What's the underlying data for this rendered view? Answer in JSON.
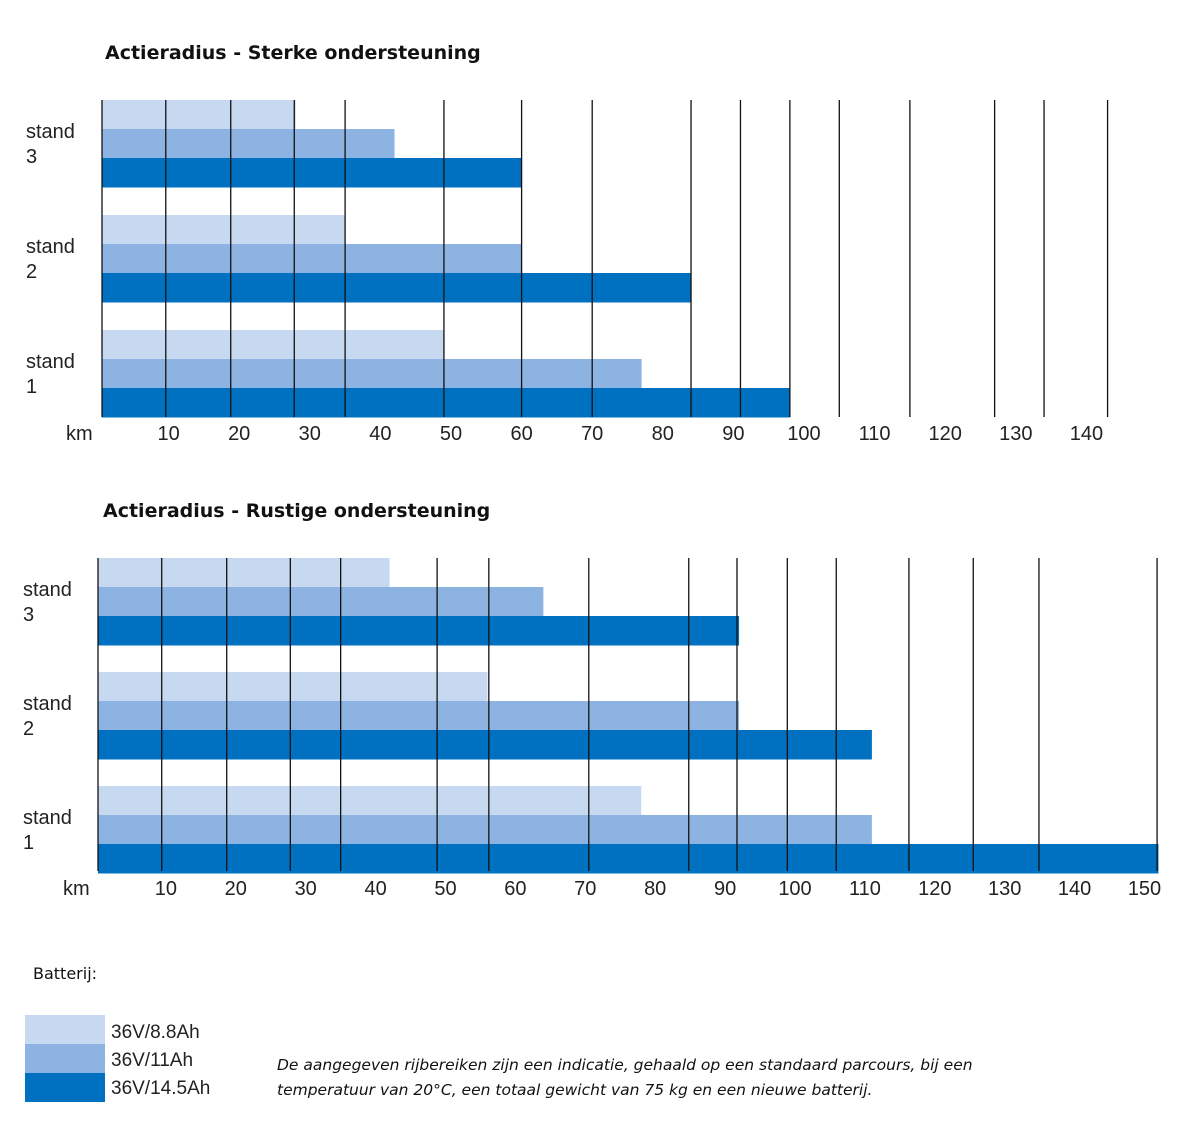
{
  "colors": {
    "8.8": "#c6d9f1",
    "11": "#8db3e2",
    "14.5": "#0070c0"
  },
  "chart_data": [
    {
      "type": "bar",
      "orientation": "horizontal",
      "title": "Actieradius - Sterke ondersteuning",
      "xlabel": "km",
      "xticks": [
        10,
        20,
        30,
        40,
        50,
        60,
        70,
        80,
        90,
        100,
        110,
        120,
        130,
        140
      ],
      "gridlines": [
        0,
        9.6,
        18.8,
        27.8,
        35,
        49,
        60,
        70,
        84,
        91,
        98,
        105,
        115,
        127,
        134,
        143
      ],
      "xlim": [
        0,
        143
      ],
      "categories": [
        "stand 3",
        "stand 2",
        "stand 1"
      ],
      "category_lines": [
        [
          "stand",
          "3"
        ],
        [
          "stand",
          "2"
        ],
        [
          "stand",
          "1"
        ]
      ],
      "series": [
        {
          "name": "36V/8.8Ah",
          "values": [
            28,
            35,
            49
          ]
        },
        {
          "name": "36V/11Ah",
          "values": [
            42,
            60,
            77
          ]
        },
        {
          "name": "36V/14.5Ah",
          "values": [
            60,
            84,
            98
          ]
        }
      ]
    },
    {
      "type": "bar",
      "orientation": "horizontal",
      "title": "Actieradius - Rustige ondersteuning",
      "xlabel": "km",
      "xticks": [
        10,
        20,
        30,
        40,
        50,
        60,
        70,
        80,
        90,
        100,
        110,
        120,
        130,
        140,
        150
      ],
      "gridlines": [
        0,
        9.4,
        18.7,
        27.8,
        35,
        48.8,
        56.2,
        70.5,
        84.8,
        91.7,
        98.9,
        105.9,
        116.3,
        125.5,
        134.9,
        151.8
      ],
      "xlim": [
        0,
        152
      ],
      "categories": [
        "stand 3",
        "stand 2",
        "stand 1"
      ],
      "category_lines": [
        [
          "stand",
          "3"
        ],
        [
          "stand",
          "2"
        ],
        [
          "stand",
          "1"
        ]
      ],
      "series": [
        {
          "name": "36V/8.8Ah",
          "values": [
            42,
            56,
            78
          ]
        },
        {
          "name": "36V/11Ah",
          "values": [
            64,
            92,
            111
          ]
        },
        {
          "name": "36V/14.5Ah",
          "values": [
            92,
            111,
            152
          ]
        }
      ]
    }
  ],
  "legend": {
    "title": "Batterij:",
    "items": [
      "36V/8.8Ah",
      "36V/11Ah",
      "36V/14.5Ah"
    ]
  },
  "note": [
    "De aangegeven rijbereiken zijn een indicatie, gehaald op een standaard parcours, bij een",
    "temperatuur van 20°C, een totaal gewicht van 75 kg en een nieuwe batterij."
  ]
}
